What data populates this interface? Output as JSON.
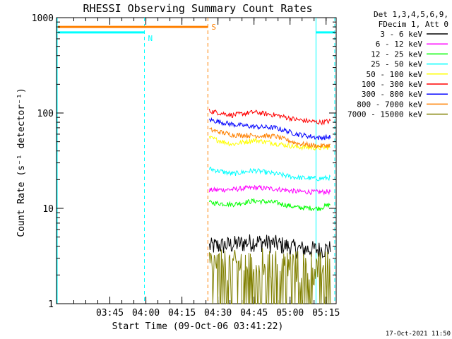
{
  "chart_data": {
    "type": "line",
    "title": "RHESSI Observing Summary Count Rates",
    "xlabel": "Start Time (09-Oct-06 03:41:22)",
    "ylabel": "Count Rate (s⁻¹ detector⁻¹)",
    "yscale": "log",
    "ylim": [
      1,
      1000
    ],
    "xlim_minutes": [
      3.38,
      5.32
    ],
    "x_ticks": [
      {
        "label": "03:45",
        "value": 3.75
      },
      {
        "label": "04:00",
        "value": 4.0
      },
      {
        "label": "04:15",
        "value": 4.25
      },
      {
        "label": "04:30",
        "value": 4.5
      },
      {
        "label": "04:45",
        "value": 4.75
      },
      {
        "label": "05:00",
        "value": 5.0
      },
      {
        "label": "05:15",
        "value": 5.25
      }
    ],
    "y_ticks": [
      {
        "label": "1",
        "value": 1
      },
      {
        "label": "10",
        "value": 10
      },
      {
        "label": "100",
        "value": 100
      },
      {
        "label": "1000",
        "value": 1000
      }
    ],
    "legend_header": [
      "Det 1,3,4,5,6,9,",
      "FDecim 1, Att 0"
    ],
    "legend_position": "right",
    "series": [
      {
        "name": "3 - 6 keV",
        "color": "#000000",
        "x": [
          4.44,
          4.6,
          4.75,
          4.9,
          5.05,
          5.2,
          5.28
        ],
        "values": [
          4.0,
          4.2,
          4.5,
          4.3,
          3.8,
          3.7,
          3.8
        ]
      },
      {
        "name": "6 - 12 keV",
        "color": "#ff00ff",
        "x": [
          4.44,
          4.6,
          4.75,
          4.9,
          5.05,
          5.2,
          5.28
        ],
        "values": [
          15.5,
          15.8,
          16.5,
          16.0,
          15.0,
          14.8,
          15.0
        ]
      },
      {
        "name": "12 - 25 keV",
        "color": "#00ff00",
        "x": [
          4.44,
          4.6,
          4.75,
          4.9,
          5.05,
          5.2,
          5.28
        ],
        "values": [
          11.5,
          11.0,
          12.0,
          11.5,
          10.2,
          10.0,
          11.0
        ]
      },
      {
        "name": "25 - 50 keV",
        "color": "#00ffff",
        "x": [
          4.44,
          4.6,
          4.75,
          4.9,
          5.05,
          5.2,
          5.28
        ],
        "values": [
          26,
          23,
          25,
          23,
          21,
          20.5,
          21
        ]
      },
      {
        "name": "50 - 100 keV",
        "color": "#ffff00",
        "x": [
          4.44,
          4.6,
          4.75,
          4.9,
          5.05,
          5.2,
          5.28
        ],
        "values": [
          55,
          47,
          52,
          48,
          44,
          43,
          44
        ]
      },
      {
        "name": "100 - 300 keV",
        "color": "#ff0000",
        "x": [
          4.44,
          4.6,
          4.75,
          4.9,
          5.05,
          5.2,
          5.28
        ],
        "values": [
          105,
          95,
          102,
          95,
          85,
          80,
          82
        ]
      },
      {
        "name": "300 - 800 keV",
        "color": "#0000ff",
        "x": [
          4.44,
          4.6,
          4.75,
          4.9,
          5.05,
          5.2,
          5.28
        ],
        "values": [
          85,
          76,
          72,
          70,
          60,
          55,
          56
        ]
      },
      {
        "name": "800 - 7000 keV",
        "color": "#ff8000",
        "x": [
          4.44,
          4.6,
          4.75,
          4.9,
          5.05,
          5.2,
          5.28
        ],
        "values": [
          67,
          59,
          58,
          57,
          48,
          45,
          46
        ]
      },
      {
        "name": "7000 - 15000 keV",
        "color": "#808000",
        "x": [
          4.44,
          4.6,
          4.75,
          4.9,
          5.05,
          5.2,
          5.28
        ],
        "values": [
          2.7,
          2.6,
          2.8,
          2.7,
          2.6,
          2.5,
          2.6
        ]
      }
    ],
    "flags": [
      {
        "label": "S",
        "color": "#ff8000",
        "value": 800
      },
      {
        "label": "N",
        "color": "#00ffff",
        "value": 700
      }
    ],
    "timestamp": "17-Oct-2021 11:50",
    "grid": false
  }
}
